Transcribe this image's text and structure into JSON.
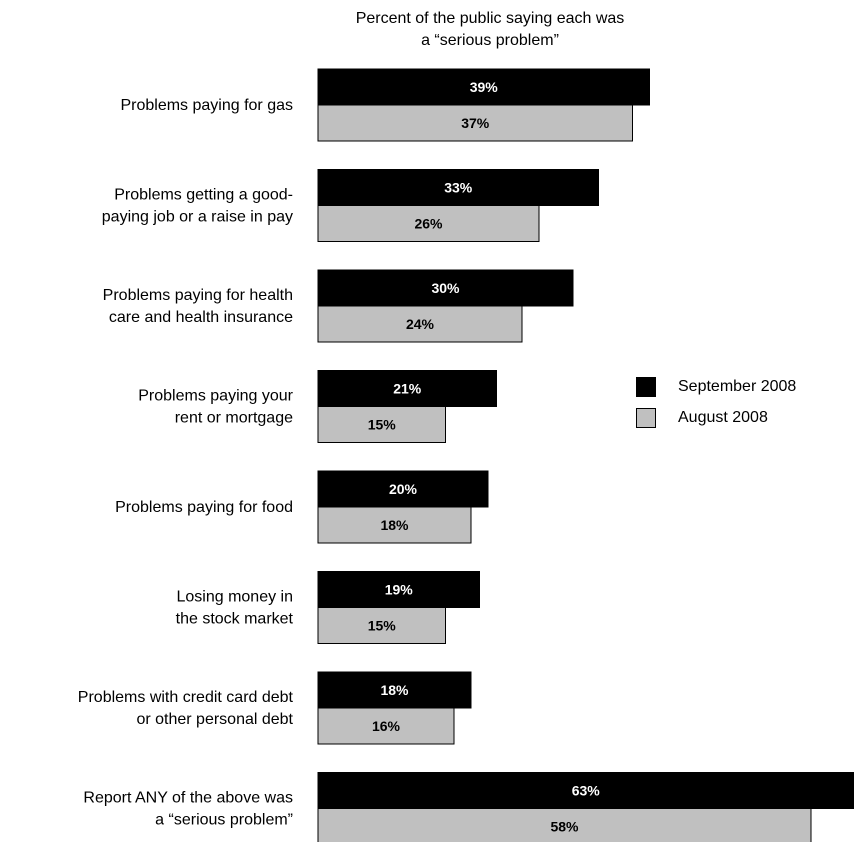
{
  "chart_data": {
    "type": "bar",
    "orientation": "horizontal",
    "title": "Percent of the public saying each was a “serious problem”",
    "title_lines": [
      "Percent of the public saying each was",
      "a “serious problem”"
    ],
    "categories": [
      [
        "Problems paying for gas"
      ],
      [
        "Problems getting a good-",
        "paying job or a raise in pay"
      ],
      [
        "Problems paying for health",
        "care and health insurance"
      ],
      [
        "Problems paying your",
        "rent or mortgage"
      ],
      [
        "Problems paying for food"
      ],
      [
        "Losing money in",
        "the stock market"
      ],
      [
        "Problems with credit card debt",
        "or other personal debt"
      ],
      [
        "Report ANY of the above was",
        "a “serious problem”"
      ]
    ],
    "series": [
      {
        "name": "September 2008",
        "color": "#000000",
        "label_color": "#ffffff",
        "values": [
          39,
          33,
          30,
          21,
          20,
          19,
          18,
          63
        ]
      },
      {
        "name": "August 2008",
        "color": "#c0c0c0",
        "label_color": "#000000",
        "values": [
          37,
          26,
          24,
          15,
          18,
          15,
          16,
          58
        ]
      }
    ],
    "value_suffix": "%",
    "xlim": [
      0,
      63
    ],
    "grid": false,
    "legend_position": "right"
  }
}
